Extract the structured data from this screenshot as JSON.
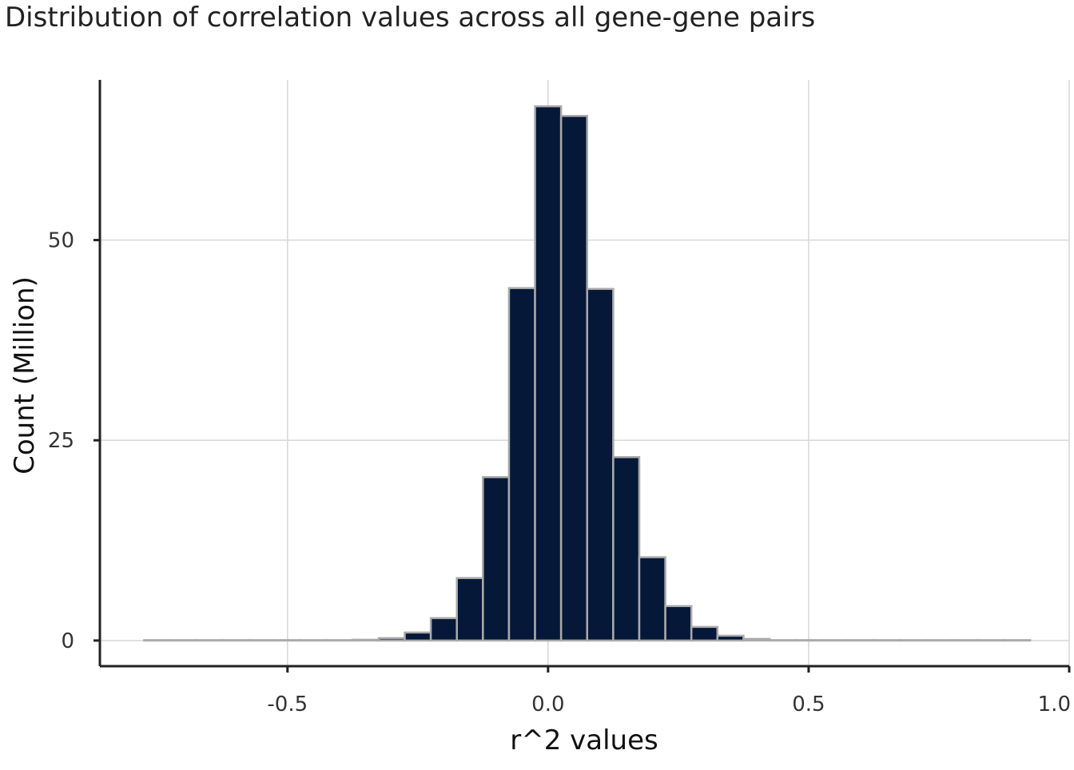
{
  "chart_data": {
    "type": "bar",
    "title": "Distribution of correlation values across all gene-gene pairs",
    "xlabel": "r^2 values",
    "ylabel": "Count (Million)",
    "xlim": [
      -0.86,
      1.0
    ],
    "ylim": [
      -3.2,
      70
    ],
    "x_ticks": [
      -0.5,
      0.0,
      0.5,
      1.0
    ],
    "x_tick_labels": [
      "-0.5",
      "0.0",
      "0.5",
      "1.0"
    ],
    "y_ticks": [
      0,
      25,
      50
    ],
    "y_tick_labels": [
      "0",
      "25",
      "50"
    ],
    "grid": true,
    "bin_width": 0.05,
    "bins": [
      {
        "x0": -0.775,
        "x1": -0.725,
        "value": 0.0
      },
      {
        "x0": -0.725,
        "x1": -0.675,
        "value": 0.0
      },
      {
        "x0": -0.675,
        "x1": -0.625,
        "value": 0.0
      },
      {
        "x0": -0.625,
        "x1": -0.575,
        "value": 0.0
      },
      {
        "x0": -0.575,
        "x1": -0.525,
        "value": 0.0
      },
      {
        "x0": -0.525,
        "x1": -0.475,
        "value": 0.0
      },
      {
        "x0": -0.475,
        "x1": -0.425,
        "value": 0.01
      },
      {
        "x0": -0.425,
        "x1": -0.375,
        "value": 0.03
      },
      {
        "x0": -0.375,
        "x1": -0.325,
        "value": 0.1
      },
      {
        "x0": -0.325,
        "x1": -0.275,
        "value": 0.3
      },
      {
        "x0": -0.275,
        "x1": -0.225,
        "value": 1.0
      },
      {
        "x0": -0.225,
        "x1": -0.175,
        "value": 2.8
      },
      {
        "x0": -0.175,
        "x1": -0.125,
        "value": 7.8
      },
      {
        "x0": -0.125,
        "x1": -0.075,
        "value": 20.4
      },
      {
        "x0": -0.075,
        "x1": -0.025,
        "value": 44.0
      },
      {
        "x0": -0.025,
        "x1": 0.025,
        "value": 66.7
      },
      {
        "x0": 0.025,
        "x1": 0.075,
        "value": 65.5
      },
      {
        "x0": 0.075,
        "x1": 0.125,
        "value": 43.9
      },
      {
        "x0": 0.125,
        "x1": 0.175,
        "value": 22.9
      },
      {
        "x0": 0.175,
        "x1": 0.225,
        "value": 10.4
      },
      {
        "x0": 0.225,
        "x1": 0.275,
        "value": 4.3
      },
      {
        "x0": 0.275,
        "x1": 0.325,
        "value": 1.7
      },
      {
        "x0": 0.325,
        "x1": 0.375,
        "value": 0.6
      },
      {
        "x0": 0.375,
        "x1": 0.425,
        "value": 0.2
      },
      {
        "x0": 0.425,
        "x1": 0.475,
        "value": 0.06
      },
      {
        "x0": 0.475,
        "x1": 0.525,
        "value": 0.02
      },
      {
        "x0": 0.525,
        "x1": 0.575,
        "value": 0.0
      },
      {
        "x0": 0.575,
        "x1": 0.625,
        "value": 0.0
      },
      {
        "x0": 0.625,
        "x1": 0.675,
        "value": 0.0
      },
      {
        "x0": 0.675,
        "x1": 0.725,
        "value": 0.0
      },
      {
        "x0": 0.725,
        "x1": 0.775,
        "value": 0.0
      },
      {
        "x0": 0.775,
        "x1": 0.825,
        "value": 0.0
      },
      {
        "x0": 0.825,
        "x1": 0.875,
        "value": 0.0
      },
      {
        "x0": 0.875,
        "x1": 0.925,
        "value": 0.0
      }
    ],
    "colors": {
      "bar_fill": "#061838",
      "bar_stroke": "#aaaaaa",
      "grid": "#d9d9d9",
      "axis": "#222222"
    }
  }
}
